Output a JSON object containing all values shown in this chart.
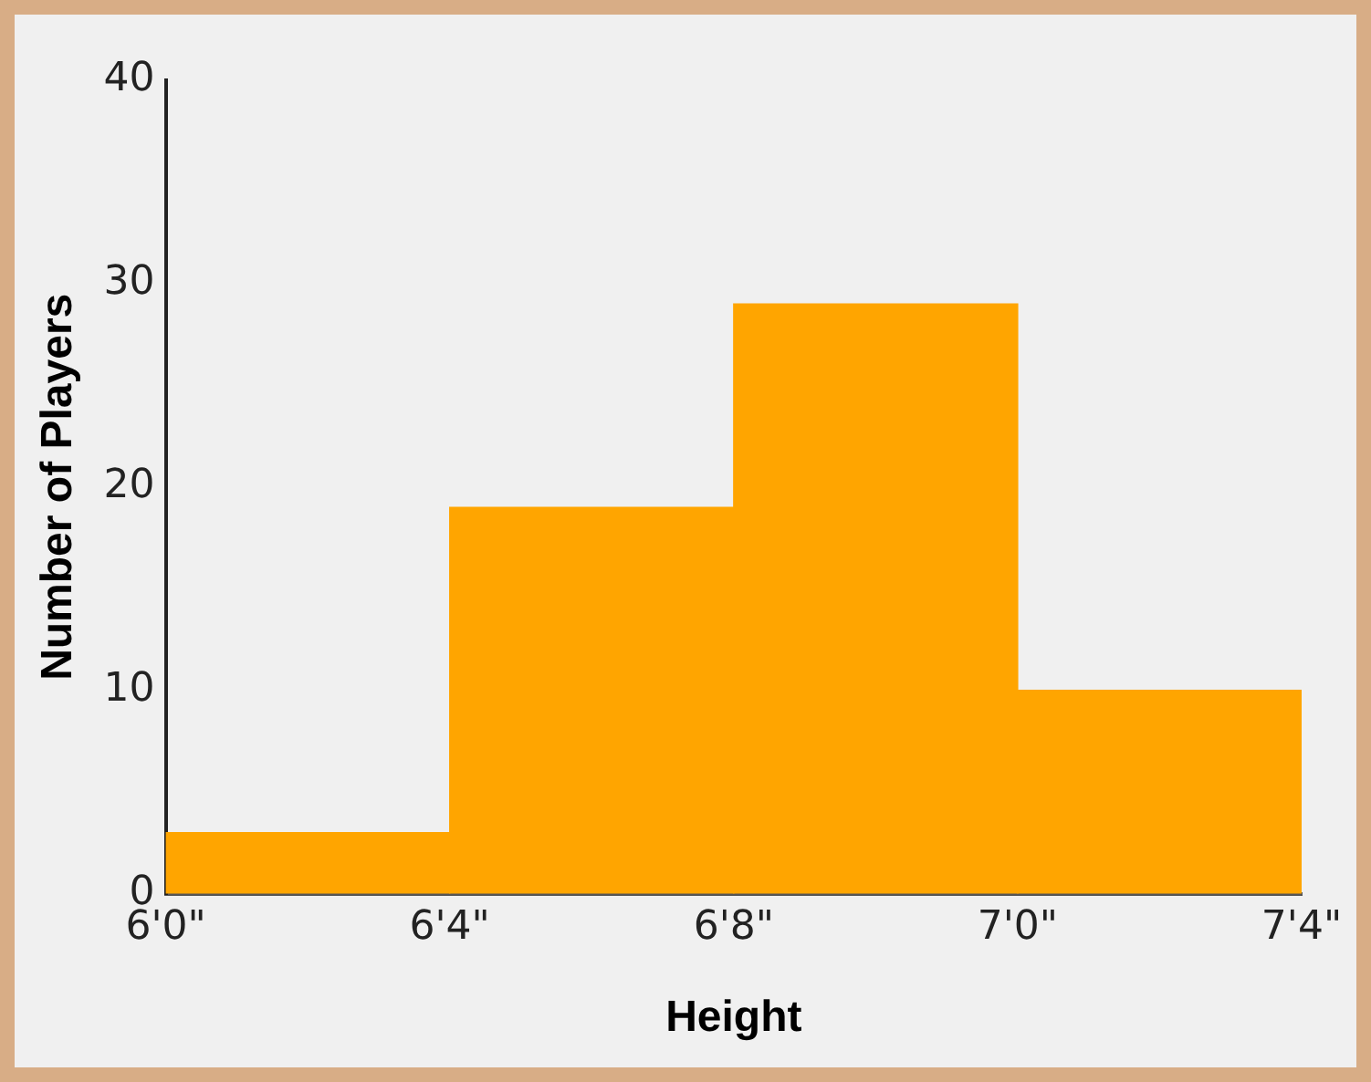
{
  "chart_data": {
    "type": "bar",
    "xlabel": "Height",
    "ylabel": "Number of Players",
    "categories": [
      null,
      null,
      null,
      null
    ],
    "values": [
      3,
      19,
      29,
      10
    ],
    "color": "#ffa500",
    "annotations": [
      "6'0\"",
      "6'4\"",
      "6'8\"",
      "7'0\"",
      "7'4\""
    ],
    "ylim": [
      0,
      40
    ],
    "yticks": [
      0,
      10,
      20,
      30,
      40
    ],
    "grid": false,
    "legend": false
  }
}
